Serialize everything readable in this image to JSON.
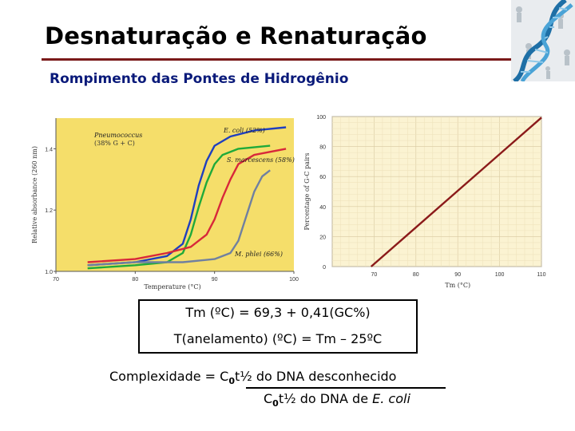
{
  "slide": {
    "title": "Desnaturação e Renaturação",
    "subtitle": "Rompimento das Pontes de Hidrogênio"
  },
  "chart_data": [
    {
      "type": "line",
      "xlabel": "Temperature (°C)",
      "ylabel": "Relative absorbance (260 nm)",
      "xlim": [
        70,
        100
      ],
      "ylim": [
        1.0,
        1.5
      ],
      "x_ticks": [
        "70",
        "80",
        "90",
        "100"
      ],
      "y_ticks": [
        "1.0",
        "1.2",
        "1.4"
      ],
      "background": "#f5de6a",
      "grid": false,
      "series": [
        {
          "name": "E. coli (52%)",
          "color": "#1f3fbf",
          "x": [
            74,
            80,
            84,
            86,
            87,
            88,
            89,
            90,
            92,
            95,
            99
          ],
          "y": [
            1.02,
            1.03,
            1.05,
            1.09,
            1.17,
            1.28,
            1.36,
            1.41,
            1.44,
            1.46,
            1.47
          ]
        },
        {
          "name": "Pneumococcus (38% G + C)",
          "color": "#1faa3a",
          "x": [
            74,
            80,
            84,
            86,
            87,
            88,
            89,
            90,
            91,
            93,
            97
          ],
          "y": [
            1.01,
            1.02,
            1.03,
            1.06,
            1.12,
            1.21,
            1.29,
            1.35,
            1.38,
            1.4,
            1.41
          ]
        },
        {
          "name": "S. marcescens (58%)",
          "color": "#d8283a",
          "x": [
            74,
            80,
            84,
            87,
            89,
            90,
            91,
            92,
            93,
            95,
            99
          ],
          "y": [
            1.03,
            1.04,
            1.06,
            1.08,
            1.12,
            1.17,
            1.24,
            1.3,
            1.35,
            1.38,
            1.4
          ]
        },
        {
          "name": "M. phlei (66%)",
          "color": "#7080a0",
          "x": [
            74,
            80,
            86,
            90,
            92,
            93,
            94,
            95,
            96,
            97
          ],
          "y": [
            1.02,
            1.03,
            1.03,
            1.04,
            1.06,
            1.1,
            1.18,
            1.26,
            1.31,
            1.33
          ]
        }
      ]
    },
    {
      "type": "line",
      "xlabel": "Tm (°C)",
      "ylabel": "Percentage of G-C pairs",
      "xlim": [
        60,
        110
      ],
      "ylim": [
        0,
        100
      ],
      "x_ticks": [
        "70",
        "80",
        "90",
        "100",
        "110"
      ],
      "y_ticks": [
        "0",
        "20",
        "40",
        "60",
        "80",
        "100"
      ],
      "background": "#fbf3d2",
      "grid": true,
      "series": [
        {
          "color": "#8b1a1a",
          "x": [
            69.3,
            110
          ],
          "y": [
            0,
            99.3
          ]
        }
      ]
    }
  ],
  "formulas": {
    "tm": "Tm (ºC) = 69,3 + 0,41(GC%)",
    "annealing": "T(anelamento) (ºC) = Tm – 25ºC",
    "complexity_lhs": "Complexidade = C",
    "complexity_sub1": "0",
    "complexity_num": "t½ do DNA desconhecido",
    "complexity_den_c": "C",
    "complexity_sub2": "0",
    "complexity_den_text": "t½ do DNA de ",
    "complexity_den_italic": "E. coli"
  },
  "logo": {
    "name": "dna-helix-image"
  }
}
